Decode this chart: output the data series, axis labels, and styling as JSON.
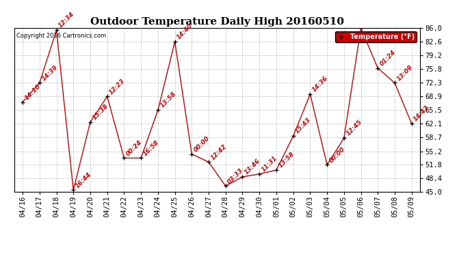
{
  "title": "Outdoor Temperature Daily High 20160510",
  "copyright": "Copyright 2016 Cartronics.com",
  "legend_label": "Temperature (°F)",
  "dates": [
    "04/16",
    "04/17",
    "04/18",
    "04/19",
    "04/20",
    "04/21",
    "04/22",
    "04/23",
    "04/24",
    "04/25",
    "04/26",
    "04/27",
    "04/28",
    "04/29",
    "04/30",
    "05/01",
    "05/02",
    "05/03",
    "05/04",
    "05/05",
    "05/06",
    "05/07",
    "05/08",
    "05/09"
  ],
  "temps": [
    67.5,
    72.3,
    85.5,
    45.5,
    62.5,
    68.9,
    53.5,
    53.5,
    65.5,
    82.6,
    54.5,
    52.5,
    46.5,
    48.8,
    49.5,
    50.5,
    59.0,
    69.5,
    51.8,
    58.5,
    86.0,
    76.0,
    72.3,
    62.1
  ],
  "time_labels": [
    "14:10",
    "14:39",
    "12:34",
    "16:44",
    "15:38",
    "12:23",
    "00:24",
    "16:58",
    "13:58",
    "14:40",
    "00:00",
    "12:42",
    "03:33",
    "13:46",
    "11:31",
    "13:58",
    "15:43",
    "14:36",
    "00:00",
    "12:45",
    "",
    "01:24",
    "13:09",
    "14:42"
  ],
  "ylim": [
    45.0,
    86.0
  ],
  "yticks": [
    45.0,
    48.4,
    51.8,
    55.2,
    58.7,
    62.1,
    65.5,
    68.9,
    72.3,
    75.8,
    79.2,
    82.6,
    86.0
  ],
  "line_color": "#cc0000",
  "marker_color": "#000000",
  "label_color": "#cc0000",
  "background_color": "#ffffff",
  "grid_color": "#aaaaaa",
  "legend_bg": "#cc0000",
  "legend_fg": "#ffffff",
  "title_fontsize": 11,
  "tick_fontsize": 7.5,
  "label_fontsize": 6.5
}
